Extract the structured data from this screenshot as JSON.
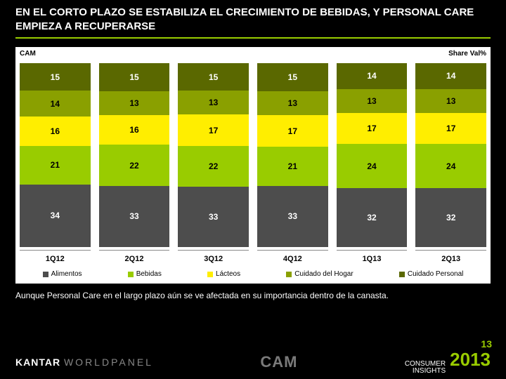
{
  "title": "EN EL CORTO PLAZO SE ESTABILIZA EL CRECIMIENTO DE BEBIDAS, Y PERSONAL CARE EMPIEZA A RECUPERARSE",
  "chart": {
    "type": "stacked-bar",
    "left_label": "CAM",
    "right_label": "Share Val%",
    "background": "#ffffff",
    "categories": [
      "1Q12",
      "2Q12",
      "3Q12",
      "4Q12",
      "1Q13",
      "2Q13"
    ],
    "series": [
      {
        "name": "Cuidado Personal",
        "color": "#5a6800",
        "text_color": "#ffffff",
        "values": [
          15,
          15,
          15,
          15,
          14,
          14
        ]
      },
      {
        "name": "Cuidado del Hogar",
        "color": "#8aa000",
        "text_color": "#000000",
        "values": [
          14,
          13,
          13,
          13,
          13,
          13
        ]
      },
      {
        "name": "Lácteos",
        "color": "#ffee00",
        "text_color": "#000000",
        "values": [
          16,
          16,
          17,
          17,
          17,
          17
        ]
      },
      {
        "name": "Bebidas",
        "color": "#99cc00",
        "text_color": "#000000",
        "values": [
          21,
          22,
          22,
          21,
          24,
          24
        ]
      },
      {
        "name": "Alimentos",
        "color": "#4d4d4d",
        "text_color": "#ffffff",
        "values": [
          34,
          33,
          33,
          33,
          32,
          32
        ]
      }
    ],
    "legend_order": [
      "Alimentos",
      "Bebidas",
      "Lácteos",
      "Cuidado del Hogar",
      "Cuidado Personal"
    ]
  },
  "note": "Aunque Personal Care en el largo plazo aún se ve afectada en su importancia dentro de la canasta.",
  "footer": {
    "brand_left_1": "KANTAR",
    "brand_left_2": "WORLDPANEL",
    "brand_center": "CAM",
    "ci_line1": "CONSUMER",
    "ci_line2": "INSIGHTS",
    "year": "2013"
  },
  "page_number": "13"
}
